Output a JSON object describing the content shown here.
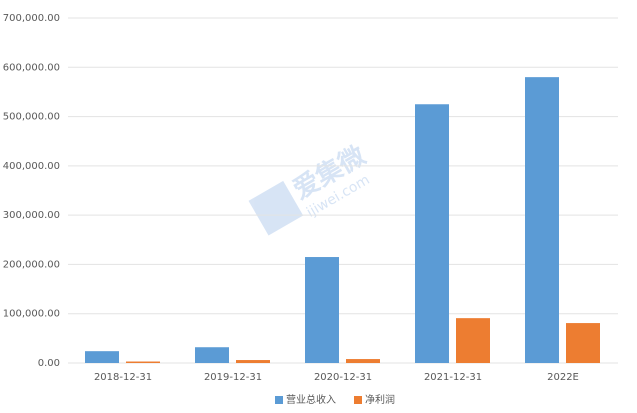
{
  "chart_data": {
    "type": "bar",
    "categories": [
      "2018-12-31",
      "2019-12-31",
      "2020-12-31",
      "2021-12-31",
      "2022E"
    ],
    "series": [
      {
        "name": "营业总收入",
        "color": "#5b9bd5",
        "values": [
          24000,
          32000,
          215000,
          525000,
          580000
        ]
      },
      {
        "name": "净利润",
        "color": "#ed7d31",
        "values": [
          3000,
          6000,
          8000,
          91000,
          81000
        ]
      }
    ],
    "ylim": [
      0,
      700000
    ],
    "yticks": [
      {
        "value": 0,
        "label": "0.00"
      },
      {
        "value": 100000,
        "label": "100,000.00"
      },
      {
        "value": 200000,
        "label": "200,000.00"
      },
      {
        "value": 300000,
        "label": "300,000.00"
      },
      {
        "value": 400000,
        "label": "400,000.00"
      },
      {
        "value": 500000,
        "label": "500,000.00"
      },
      {
        "value": 600000,
        "label": "600,000.00"
      },
      {
        "value": 700000,
        "label": "700,000.00"
      }
    ],
    "grid": true,
    "legend": "bottom",
    "watermark": "爱集微",
    "watermark_url": "ijiwei.com"
  }
}
